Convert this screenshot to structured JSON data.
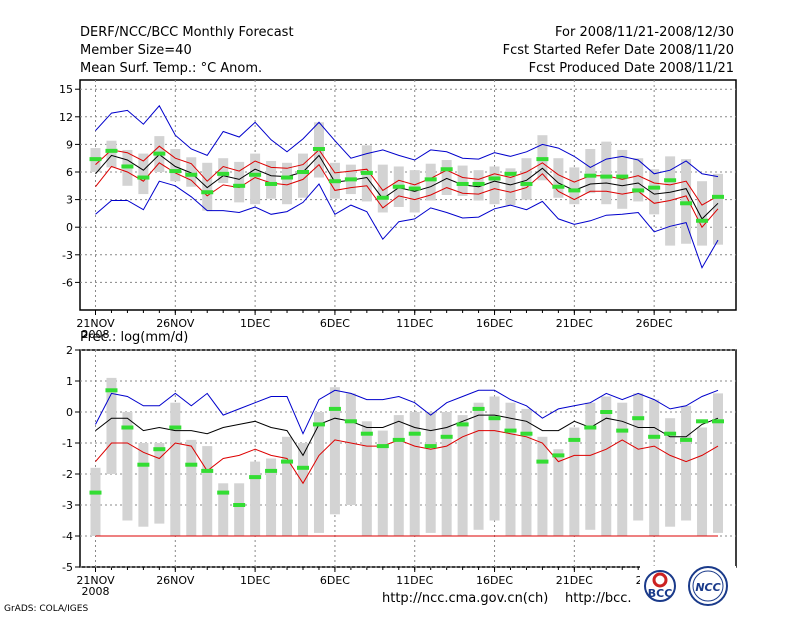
{
  "header": {
    "title": "DERF/NCC/BCC Monthly Forecast",
    "member_size": "Member Size=40",
    "variable": "Mean Surf. Temp.: °C Anom.",
    "period": "For 2008/11/21-2008/12/30",
    "started": "Fcst Started Refer Date 2008/11/20",
    "produced": "Fcst Produced Date 2008/11/21"
  },
  "footer": {
    "grads": "GrADS: COLA/IGES",
    "url1": "http://ncc.cma.gov.cn(ch)",
    "url2": "http://bcc.",
    "logo1": "BCC",
    "logo2": "NCC"
  },
  "colors": {
    "median": "#000000",
    "band": "#dd0000",
    "envelope": "#0000cc",
    "box": "#d3d3d3",
    "mean": "#33dd33",
    "grid": "#888888"
  },
  "chart_data": [
    {
      "type": "line",
      "title": "Mean Surf. Temp.: °C Anom.",
      "ylim": [
        -9,
        16
      ],
      "yticks": [
        15,
        12,
        9,
        6,
        3,
        0,
        -3,
        -6
      ],
      "xtick_labels": [
        "21NOV",
        "26NOV",
        "1DEC",
        "6DEC",
        "11DEC",
        "16DEC",
        "21DEC",
        "26DEC"
      ],
      "xtick_sub": "2008",
      "days": [
        1,
        2,
        3,
        4,
        5,
        6,
        7,
        8,
        9,
        10,
        11,
        12,
        13,
        14,
        15,
        16,
        17,
        18,
        19,
        20,
        21,
        22,
        23,
        24,
        25,
        26,
        27,
        28,
        29,
        30,
        31,
        32,
        33,
        34,
        35,
        36,
        37,
        38,
        39,
        40
      ],
      "series": [
        {
          "name": "max",
          "values": [
            10.5,
            12.4,
            12.7,
            11.2,
            13.2,
            10.0,
            8.5,
            7.8,
            10.4,
            9.8,
            11.4,
            9.5,
            8.2,
            9.6,
            11.4,
            9.4,
            7.5,
            8.0,
            8.4,
            7.8,
            7.3,
            8.4,
            8.2,
            7.5,
            7.4,
            8.1,
            7.7,
            8.2,
            9.0,
            8.6,
            7.7,
            6.5,
            7.4,
            7.7,
            7.3,
            5.8,
            6.2,
            7.2,
            5.8,
            5.5
          ]
        },
        {
          "name": "upper",
          "values": [
            6.8,
            8.4,
            8.1,
            7.2,
            8.8,
            7.5,
            6.9,
            5.0,
            6.6,
            6.1,
            7.2,
            6.5,
            6.4,
            6.8,
            8.4,
            5.9,
            6.1,
            6.3,
            4.0,
            5.1,
            4.6,
            5.3,
            6.2,
            5.4,
            5.2,
            5.8,
            5.4,
            6.0,
            7.0,
            5.7,
            4.9,
            5.6,
            5.6,
            5.2,
            5.6,
            4.8,
            4.6,
            5.0,
            2.4,
            3.4
          ]
        },
        {
          "name": "median",
          "values": [
            5.8,
            7.8,
            7.3,
            6.2,
            7.9,
            6.6,
            5.9,
            4.3,
            5.6,
            5.2,
            6.3,
            5.6,
            5.5,
            6.0,
            7.8,
            4.9,
            5.1,
            5.4,
            3.1,
            4.3,
            3.9,
            4.4,
            5.3,
            4.6,
            4.4,
            5.0,
            4.6,
            5.1,
            6.4,
            4.8,
            4.0,
            4.7,
            4.8,
            4.5,
            4.8,
            3.6,
            3.8,
            4.2,
            0.9,
            2.6
          ]
        },
        {
          "name": "lower",
          "values": [
            4.4,
            6.6,
            6.0,
            5.0,
            7.0,
            5.9,
            5.1,
            3.4,
            4.6,
            4.3,
            5.4,
            4.8,
            4.6,
            5.2,
            6.8,
            4.0,
            4.3,
            4.5,
            2.1,
            3.4,
            3.0,
            3.5,
            4.3,
            3.7,
            3.6,
            4.2,
            3.8,
            4.3,
            5.8,
            3.9,
            3.0,
            3.9,
            3.9,
            3.6,
            3.9,
            2.6,
            2.9,
            3.4,
            0.0,
            2.0
          ]
        },
        {
          "name": "min",
          "values": [
            1.4,
            2.9,
            2.9,
            1.9,
            5.0,
            4.5,
            3.3,
            1.8,
            1.8,
            1.6,
            2.2,
            1.4,
            1.7,
            2.7,
            4.7,
            1.4,
            2.4,
            1.7,
            -1.3,
            0.6,
            0.9,
            2.1,
            1.6,
            1.0,
            1.1,
            2.0,
            2.4,
            1.9,
            2.8,
            0.9,
            0.3,
            0.7,
            1.3,
            1.4,
            1.6,
            -0.5,
            0.1,
            0.5,
            -4.4,
            -1.4
          ]
        },
        {
          "name": "box_top",
          "values": [
            8.6,
            9.4,
            8.4,
            8.0,
            9.9,
            8.5,
            7.6,
            7.0,
            7.5,
            7.1,
            8.0,
            7.2,
            7.0,
            8.0,
            11.4,
            7.0,
            6.8,
            8.9,
            6.8,
            6.6,
            6.2,
            6.9,
            7.3,
            6.7,
            6.2,
            6.6,
            6.4,
            7.5,
            10.0,
            7.5,
            6.5,
            8.5,
            9.3,
            8.4,
            7.5,
            6.3,
            7.7,
            7.4,
            5.0,
            5.8
          ]
        },
        {
          "name": "box_bottom",
          "values": [
            6.0,
            6.5,
            4.5,
            3.6,
            6.0,
            5.0,
            4.4,
            1.8,
            4.8,
            2.7,
            2.5,
            3.1,
            2.5,
            3.2,
            5.4,
            3.1,
            3.6,
            2.8,
            1.6,
            2.2,
            1.6,
            2.9,
            3.5,
            3.4,
            2.9,
            2.5,
            2.4,
            3.0,
            5.1,
            3.2,
            2.5,
            3.7,
            2.5,
            2.0,
            2.8,
            1.4,
            -2.0,
            -1.8,
            -2.0,
            -1.9
          ]
        },
        {
          "name": "ensemble_mean",
          "values": [
            7.4,
            8.3,
            6.6,
            5.4,
            8.0,
            6.1,
            5.7,
            3.8,
            5.8,
            4.5,
            5.7,
            4.7,
            5.4,
            6.0,
            8.5,
            5.0,
            5.2,
            5.9,
            3.2,
            4.4,
            4.2,
            5.2,
            6.3,
            4.7,
            4.7,
            5.3,
            5.8,
            4.7,
            7.4,
            4.4,
            4.0,
            5.6,
            5.5,
            5.5,
            4.0,
            4.3,
            5.1,
            2.6,
            0.7,
            3.3
          ]
        }
      ]
    },
    {
      "type": "line",
      "title": "Prec.: log(mm/d)",
      "ylim": [
        -5,
        2
      ],
      "yticks": [
        2,
        1,
        0,
        -1,
        -2,
        -3,
        -4,
        -5
      ],
      "xtick_labels": [
        "21NOV",
        "26NOV",
        "1DEC",
        "6DEC",
        "11DEC",
        "16DEC",
        "21DEC",
        "26DEC"
      ],
      "xtick_sub": "2008",
      "days": [
        1,
        2,
        3,
        4,
        5,
        6,
        7,
        8,
        9,
        10,
        11,
        12,
        13,
        14,
        15,
        16,
        17,
        18,
        19,
        20,
        21,
        22,
        23,
        24,
        25,
        26,
        27,
        28,
        29,
        30,
        31,
        32,
        33,
        34,
        35,
        36,
        37,
        38,
        39,
        40
      ],
      "series": [
        {
          "name": "max",
          "values": [
            -0.4,
            0.6,
            0.5,
            0.2,
            0.2,
            0.6,
            0.2,
            0.6,
            -0.1,
            0.1,
            0.3,
            0.5,
            0.5,
            -0.7,
            0.4,
            0.7,
            0.6,
            0.4,
            0.4,
            0.5,
            0.3,
            -0.1,
            0.3,
            0.5,
            0.7,
            0.7,
            0.4,
            0.2,
            -0.2,
            0.1,
            0.2,
            0.3,
            0.6,
            0.4,
            0.6,
            0.4,
            0.1,
            0.2,
            0.5,
            0.7
          ]
        },
        {
          "name": "median",
          "values": [
            -0.6,
            -0.2,
            -0.2,
            -0.6,
            -0.5,
            -0.6,
            -0.6,
            -0.7,
            -0.5,
            -0.4,
            -0.3,
            -0.5,
            -0.6,
            -1.4,
            -0.4,
            -0.2,
            -0.3,
            -0.5,
            -0.5,
            -0.3,
            -0.5,
            -0.6,
            -0.5,
            -0.3,
            -0.1,
            -0.1,
            -0.2,
            -0.3,
            -0.6,
            -0.6,
            -0.3,
            -0.5,
            -0.2,
            -0.3,
            -0.5,
            -0.5,
            -0.8,
            -0.8,
            -0.4,
            -0.2
          ]
        },
        {
          "name": "lower",
          "values": [
            -1.6,
            -1.0,
            -1.0,
            -1.3,
            -1.5,
            -1.0,
            -1.1,
            -1.9,
            -1.5,
            -1.4,
            -1.2,
            -1.4,
            -1.5,
            -2.3,
            -1.4,
            -0.9,
            -1.0,
            -1.1,
            -1.1,
            -0.9,
            -1.1,
            -1.2,
            -1.1,
            -0.8,
            -0.6,
            -0.6,
            -0.7,
            -0.8,
            -1.0,
            -1.6,
            -1.4,
            -1.4,
            -1.2,
            -0.9,
            -1.2,
            -1.1,
            -1.4,
            -1.6,
            -1.4,
            -1.1
          ]
        },
        {
          "name": "floor",
          "values": [
            -4.0,
            -4.0,
            -4.0,
            -4.0,
            -4.0,
            -4.0,
            -4.0,
            -4.0,
            -4.0,
            -4.0,
            -4.0,
            -4.0,
            -4.0,
            -4.0,
            -4.0,
            -4.0,
            -4.0,
            -4.0,
            -4.0,
            -4.0,
            -4.0,
            -4.0,
            -4.0,
            -4.0,
            -4.0,
            -4.0,
            -4.0,
            -4.0,
            -4.0,
            -4.0,
            -4.0,
            -4.0,
            -4.0,
            -4.0,
            -4.0,
            -4.0,
            -4.0,
            -4.0,
            -4.0,
            -4.0
          ]
        },
        {
          "name": "box_top",
          "values": [
            -1.8,
            1.1,
            0.0,
            -1.0,
            -1.0,
            0.3,
            -0.9,
            -1.1,
            -2.3,
            -2.3,
            -1.6,
            -1.5,
            -0.8,
            -1.0,
            0.0,
            0.8,
            0.6,
            -0.3,
            -0.6,
            -0.1,
            0.0,
            0.0,
            0.0,
            -0.1,
            0.3,
            0.5,
            0.3,
            0.1,
            -0.8,
            -1.2,
            -0.5,
            0.3,
            0.5,
            0.3,
            0.6,
            0.4,
            -0.2,
            0.2,
            -0.5,
            0.6
          ]
        },
        {
          "name": "box_bottom",
          "values": [
            -4.0,
            -2.0,
            -3.5,
            -3.7,
            -3.6,
            -4.0,
            -4.0,
            -4.0,
            -4.0,
            -4.0,
            -4.0,
            -4.0,
            -4.0,
            -4.0,
            -3.9,
            -3.3,
            -3.0,
            -4.0,
            -4.0,
            -4.0,
            -4.0,
            -3.9,
            -4.0,
            -4.0,
            -3.8,
            -3.5,
            -4.0,
            -4.0,
            -4.0,
            -4.0,
            -4.0,
            -3.8,
            -4.0,
            -4.0,
            -3.5,
            -4.0,
            -3.7,
            -3.5,
            -4.0,
            -3.9
          ]
        },
        {
          "name": "ensemble_mean",
          "values": [
            -2.6,
            0.7,
            -0.5,
            -1.7,
            -1.2,
            -0.5,
            -1.7,
            -1.9,
            -2.6,
            -3.0,
            -2.1,
            -1.9,
            -1.6,
            -1.8,
            -0.4,
            0.1,
            -0.3,
            -0.7,
            -1.1,
            -0.9,
            -0.7,
            -1.1,
            -0.8,
            -0.4,
            0.1,
            -0.2,
            -0.6,
            -0.7,
            -1.6,
            -1.4,
            -0.9,
            -0.5,
            0.0,
            -0.6,
            -0.2,
            -0.8,
            -0.7,
            -0.9,
            -0.3,
            -0.3
          ]
        }
      ]
    }
  ]
}
